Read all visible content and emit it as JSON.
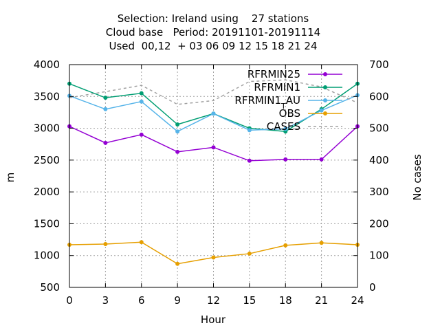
{
  "chart_data": {
    "type": "line",
    "title_lines": [
      "Selection: Ireland using    27 stations",
      "Cloud base   Period: 20191101-20191114",
      "Used  00,12  + 03 06 09 12 15 18 21 24"
    ],
    "xlabel": "Hour",
    "ylabel": "m",
    "y2label": "No cases",
    "x": [
      0,
      3,
      6,
      9,
      12,
      15,
      18,
      21,
      24
    ],
    "xlim": [
      0,
      24
    ],
    "ylim": [
      500,
      4000
    ],
    "y2lim": [
      0,
      700
    ],
    "x_ticks": [
      "0",
      "3",
      "6",
      "9",
      "12",
      "15",
      "18",
      "21",
      "24"
    ],
    "y_ticks": [
      "500",
      "1000",
      "1500",
      "2000",
      "2500",
      "3000",
      "3500",
      "4000"
    ],
    "y2_ticks": [
      "0",
      "100",
      "200",
      "300",
      "400",
      "500",
      "600",
      "700"
    ],
    "grid": true,
    "legend_position": "top-right",
    "series": [
      {
        "name": "RFRMIN25",
        "color": "#9400d3",
        "axis": "y",
        "style": "solid-marker",
        "values": [
          3030,
          2770,
          2900,
          2630,
          2700,
          2490,
          2510,
          2510,
          3030
        ]
      },
      {
        "name": "RFRMIN1",
        "color": "#009e73",
        "axis": "y",
        "style": "solid-marker",
        "values": [
          3700,
          3480,
          3550,
          3060,
          3230,
          3000,
          2950,
          3300,
          3700
        ]
      },
      {
        "name": "RFRMIN1_AU",
        "legend_main": "RFRMIN1",
        "legend_sub": "T",
        "legend_tail": "AU",
        "color": "#56b4e9",
        "axis": "y",
        "style": "solid-marker",
        "values": [
          3510,
          3300,
          3420,
          2950,
          3230,
          2970,
          2990,
          3280,
          3520
        ]
      },
      {
        "name": "OBS",
        "color": "#e69f00",
        "axis": "y",
        "style": "solid-marker",
        "values": [
          1170,
          1180,
          1210,
          870,
          970,
          1030,
          1160,
          1200,
          1170
        ]
      },
      {
        "name": "CASES",
        "color": "#a0a0a0",
        "axis": "y2",
        "style": "dashed",
        "values": [
          596,
          615,
          635,
          575,
          587,
          647,
          652,
          630,
          580
        ]
      }
    ]
  }
}
